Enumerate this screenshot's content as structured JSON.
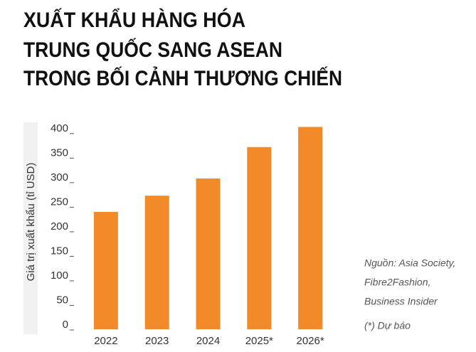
{
  "chart_data": {
    "type": "bar",
    "title": [
      "XUẤT KHẨU HÀNG HÓA",
      "TRUNG QUỐC SANG ASEAN",
      "TRONG BỐI CẢNH THƯƠNG CHIẾN"
    ],
    "y_label": "Giá trị xuất khẩu (tỉ USD)",
    "categories": [
      "2022",
      "2023",
      "2024",
      "2025*",
      "2026*"
    ],
    "values": [
      239,
      272,
      307,
      371,
      412
    ],
    "color": "#f28a2a",
    "ylim": [
      0,
      420
    ],
    "yticks": [
      0,
      50,
      100,
      150,
      200,
      250,
      300,
      350,
      400
    ],
    "source": [
      "Nguồn: Asia Society,",
      "Fibre2Fashion,",
      "Business Insider"
    ],
    "note": "(*) Dự báo"
  }
}
